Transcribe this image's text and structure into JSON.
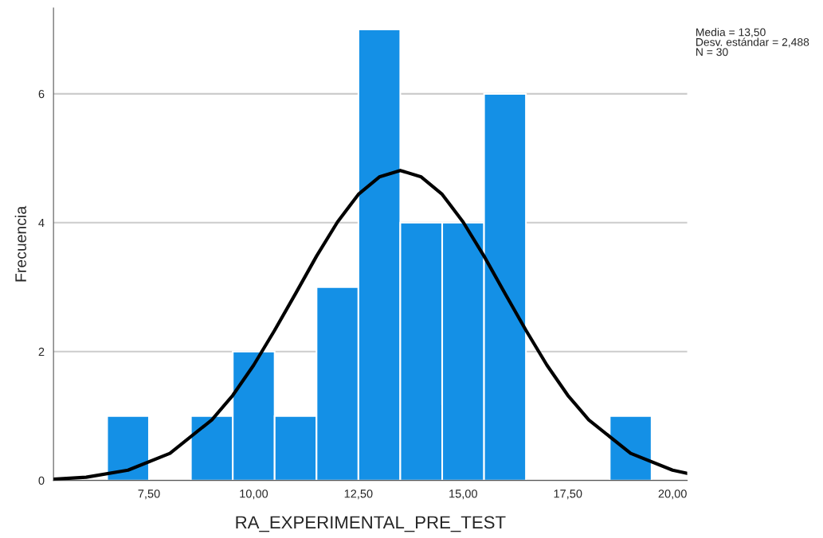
{
  "chart_data": {
    "type": "histogram",
    "xlabel": "RA_EXPERIMENTAL_PRE_TEST",
    "ylabel": "Frecuencia",
    "bins": [
      6.5,
      7.5,
      8.5,
      9.5,
      10.5,
      11.5,
      12.5,
      13.5,
      14.5,
      15.5,
      16.5,
      17.5,
      18.5,
      19.5
    ],
    "values": [
      1,
      0,
      1,
      2,
      1,
      3,
      7,
      4,
      4,
      6,
      0,
      0,
      1
    ],
    "color": "#1490e6",
    "series": [
      {
        "type": "line",
        "color": "#000000",
        "x": [
          5.22,
          6,
          7,
          8,
          9,
          9.5,
          10,
          10.5,
          11,
          11.5,
          12,
          12.5,
          13,
          13.5,
          14,
          14.5,
          15,
          15.5,
          16,
          16.5,
          17,
          17.5,
          18,
          19,
          20,
          20.35
        ],
        "values": [
          0.02,
          0.05,
          0.16,
          0.42,
          0.94,
          1.32,
          1.79,
          2.33,
          2.9,
          3.48,
          4.01,
          4.44,
          4.71,
          4.81,
          4.71,
          4.44,
          4.01,
          3.48,
          2.9,
          2.33,
          1.79,
          1.32,
          0.94,
          0.42,
          0.16,
          0.11
        ]
      }
    ],
    "xlim": [
      5.22,
      20.35
    ],
    "xticks": [
      {
        "value": 7.5,
        "label": "7,50"
      },
      {
        "value": 10,
        "label": "10,00"
      },
      {
        "value": 12.5,
        "label": "12,50"
      },
      {
        "value": 15,
        "label": "15,00"
      },
      {
        "value": 17.5,
        "label": "17,50"
      },
      {
        "value": 20,
        "label": "20,00"
      }
    ],
    "ylim": [
      0,
      7.33
    ],
    "yticks": [
      0,
      2,
      4,
      6
    ],
    "grid": "y",
    "annotations": [
      "Media = 13,50\nDesv. estándar = 2,488\nN = 30"
    ]
  }
}
